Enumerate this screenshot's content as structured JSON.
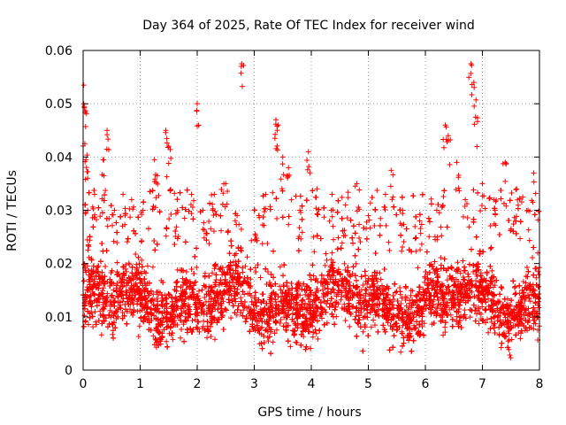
{
  "chart_data": {
    "type": "scatter",
    "title": "Day 364 of 2025, Rate Of TEC Index for receiver wind",
    "xlabel": "GPS time / hours",
    "ylabel": "ROTI / TECUs",
    "xlim": [
      0,
      8
    ],
    "ylim": [
      0,
      0.06
    ],
    "xticks": [
      0,
      1,
      2,
      3,
      4,
      5,
      6,
      7,
      8
    ],
    "xtick_labels": [
      "0",
      "1",
      "2",
      "3",
      "4",
      "5",
      "6",
      "7",
      "8"
    ],
    "yticks": [
      0,
      0.01,
      0.02,
      0.03,
      0.04,
      0.05,
      0.06
    ],
    "ytick_labels": [
      "0",
      "0.01",
      "0.02",
      "0.03",
      "0.04",
      "0.05",
      "0.06"
    ],
    "grid": true,
    "marker": "+",
    "color": "#ff0000",
    "series": [
      {
        "name": "ROTI",
        "points": [
          [
            0.01,
            0.0535
          ],
          [
            0.02,
            0.0495
          ],
          [
            0.03,
            0.0425
          ],
          [
            0.05,
            0.0395
          ],
          [
            0.08,
            0.03
          ],
          [
            0.12,
            0.025
          ],
          [
            0.2,
            0.033
          ],
          [
            0.35,
            0.0395
          ],
          [
            0.42,
            0.045
          ],
          [
            0.55,
            0.03
          ],
          [
            0.7,
            0.033
          ],
          [
            0.85,
            0.032
          ],
          [
            1.05,
            0.03
          ],
          [
            1.25,
            0.0395
          ],
          [
            1.3,
            0.0365
          ],
          [
            1.45,
            0.045
          ],
          [
            1.5,
            0.042
          ],
          [
            1.65,
            0.03
          ],
          [
            1.9,
            0.033
          ],
          [
            2.0,
            0.05
          ],
          [
            2.1,
            0.03
          ],
          [
            2.3,
            0.033
          ],
          [
            2.5,
            0.035
          ],
          [
            2.7,
            0.029
          ],
          [
            2.78,
            0.0575
          ],
          [
            3.0,
            0.03
          ],
          [
            3.2,
            0.033
          ],
          [
            3.38,
            0.047
          ],
          [
            3.42,
            0.046
          ],
          [
            3.5,
            0.04
          ],
          [
            3.6,
            0.038
          ],
          [
            3.8,
            0.03
          ],
          [
            3.95,
            0.041
          ],
          [
            4.1,
            0.034
          ],
          [
            4.35,
            0.03
          ],
          [
            4.6,
            0.031
          ],
          [
            4.8,
            0.035
          ],
          [
            5.0,
            0.029
          ],
          [
            5.3,
            0.033
          ],
          [
            5.4,
            0.0375
          ],
          [
            5.6,
            0.03
          ],
          [
            5.9,
            0.028
          ],
          [
            6.2,
            0.03
          ],
          [
            6.35,
            0.046
          ],
          [
            6.4,
            0.044
          ],
          [
            6.55,
            0.039
          ],
          [
            6.7,
            0.032
          ],
          [
            6.8,
            0.0575
          ],
          [
            6.85,
            0.054
          ],
          [
            6.88,
            0.0475
          ],
          [
            7.0,
            0.035
          ],
          [
            7.2,
            0.032
          ],
          [
            7.4,
            0.039
          ],
          [
            7.6,
            0.034
          ],
          [
            7.8,
            0.03
          ],
          [
            7.9,
            0.037
          ],
          [
            7.97,
            0.022
          ]
        ]
      }
    ],
    "bulk_distribution": {
      "description": "dense band of points across 0-8 h",
      "typical_range": [
        0.005,
        0.025
      ],
      "center": 0.013,
      "points_per_hour": 900
    }
  }
}
